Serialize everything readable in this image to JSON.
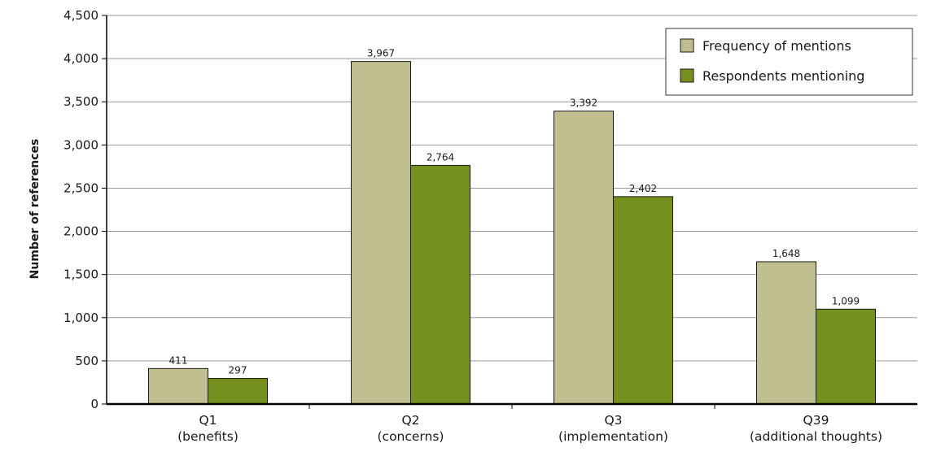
{
  "chart_data": {
    "type": "bar",
    "categories": [
      [
        "Q1",
        "(benefits)"
      ],
      [
        "Q2",
        "(concerns)"
      ],
      [
        "Q3",
        "(implementation)"
      ],
      [
        "Q39",
        "(additional thoughts)"
      ]
    ],
    "series": [
      {
        "name": "Frequency of mentions",
        "values": [
          411,
          3967,
          3392,
          1648
        ],
        "labels": [
          "411",
          "3,967",
          "3,392",
          "1,648"
        ],
        "color": "#c0bf8f"
      },
      {
        "name": "Respondents mentioning",
        "values": [
          297,
          2764,
          2402,
          1099
        ],
        "labels": [
          "297",
          "2,764",
          "2,402",
          "1,099"
        ],
        "color": "#76901f"
      }
    ],
    "xlabel": "",
    "ylabel": "Number of references",
    "ylim": [
      0,
      4500
    ],
    "yticks": [
      0,
      500,
      1000,
      1500,
      2000,
      2500,
      3000,
      3500,
      4000,
      4500
    ],
    "ytick_labels": [
      "0",
      "500",
      "1,000",
      "1,500",
      "2,000",
      "2,500",
      "3,000",
      "3,500",
      "4,000",
      "4,500"
    ],
    "grid": true,
    "legend_position": "top-right"
  }
}
